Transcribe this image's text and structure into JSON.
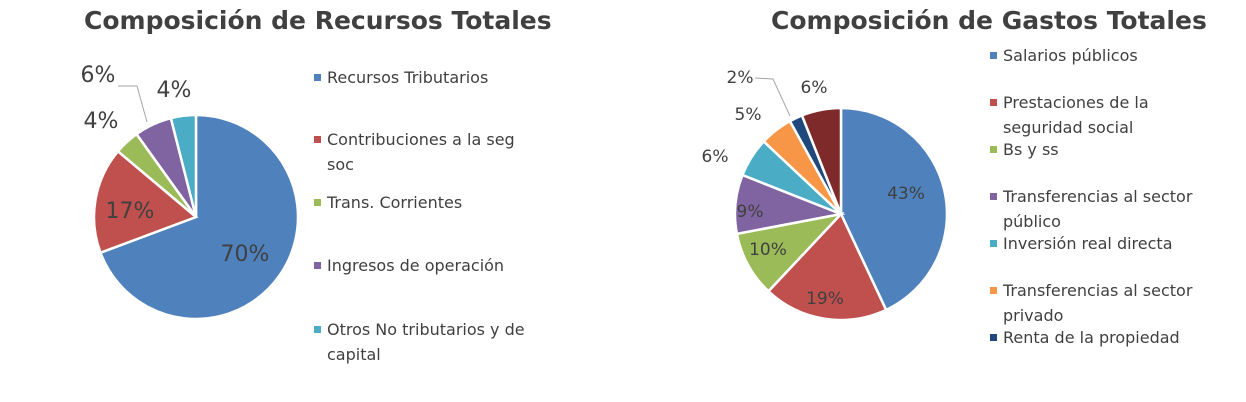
{
  "chart_data": [
    {
      "type": "pie",
      "title": "Composición de Recursos Totales",
      "series": [
        {
          "name": "Recursos Tributarios",
          "value": 70,
          "label": "70%",
          "color": "#4F81BD"
        },
        {
          "name": "Contribuciones a la seg soc",
          "value": 17,
          "label": "17%",
          "color": "#C0504D"
        },
        {
          "name": "Trans. Corrientes",
          "value": 4,
          "label": "4%",
          "color": "#9BBB59"
        },
        {
          "name": "Ingresos de operación",
          "value": 6,
          "label": "6%",
          "color": "#8064A2"
        },
        {
          "name": "Otros No tributarios y de capital",
          "value": 4,
          "label": "4%",
          "color": "#4BACC6"
        }
      ],
      "legend_position": "right"
    },
    {
      "type": "pie",
      "title": "Composición de Gastos Totales",
      "series": [
        {
          "name": "Salarios públicos",
          "value": 43,
          "label": "43%",
          "color": "#4F81BD"
        },
        {
          "name": "Prestaciones de la seguridad social",
          "value": 19,
          "label": "19%",
          "color": "#C0504D"
        },
        {
          "name": "Bs y ss",
          "value": 10,
          "label": "10%",
          "color": "#9BBB59"
        },
        {
          "name": "Transferencias al sector público",
          "value": 9,
          "label": "9%",
          "color": "#8064A2"
        },
        {
          "name": "Inversión real directa",
          "value": 6,
          "label": "6%",
          "color": "#4BACC6"
        },
        {
          "name": "Transferencias al sector privado",
          "value": 5,
          "label": "5%",
          "color": "#F79646"
        },
        {
          "name": "Renta de la propiedad",
          "value": 2,
          "label": "2%",
          "color": "#1F497D"
        },
        {
          "name": "",
          "value": 6,
          "label": "6%",
          "color": "#7F2A2A"
        }
      ],
      "legend_position": "right"
    }
  ]
}
